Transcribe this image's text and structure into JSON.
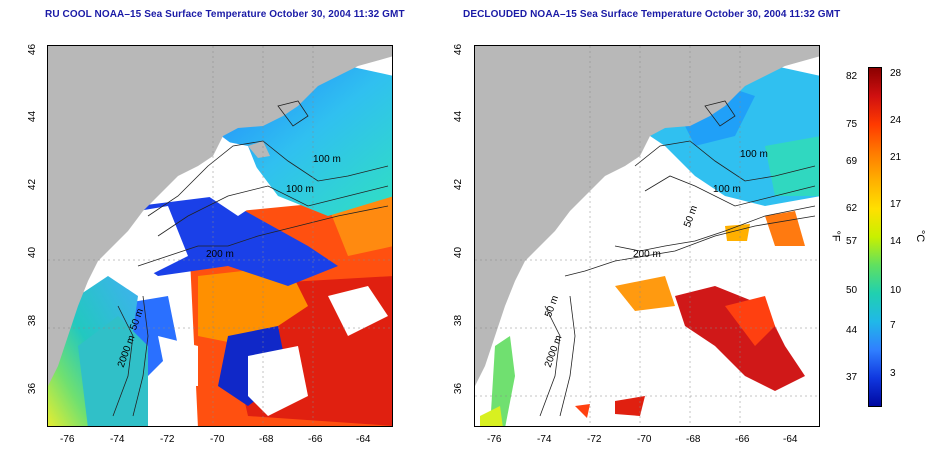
{
  "panels": [
    {
      "title": "RU COOL NOAA–15 Sea Surface Temperature October 30, 2004 11:32 GMT",
      "x_ticks": [
        "-76",
        "-74",
        "-72",
        "-70",
        "-68",
        "-66",
        "-64"
      ],
      "y_ticks": [
        "46",
        "44",
        "42",
        "40",
        "38",
        "36"
      ],
      "contour_labels": [
        "100 m",
        "100 m",
        "200 m",
        "50 m",
        "2000 m"
      ]
    },
    {
      "title": "DECLOUDED NOAA–15 Sea Surface Temperature October 30, 2004 11:32 GMT",
      "x_ticks": [
        "-76",
        "-74",
        "-72",
        "-70",
        "-68",
        "-66",
        "-64"
      ],
      "y_ticks": [
        "46",
        "44",
        "42",
        "40",
        "38",
        "36"
      ],
      "contour_labels": [
        "100 m",
        "100 m",
        "200 m",
        "50 m",
        "50 m",
        "2000 m"
      ]
    }
  ],
  "colorbar": {
    "fahrenheit_ticks": [
      "82",
      "75",
      "69",
      "62",
      "57",
      "50",
      "44",
      "37"
    ],
    "celsius_ticks": [
      "28",
      "24",
      "21",
      "17",
      "14",
      "10",
      "7",
      "3"
    ],
    "fahrenheit_unit": "°F",
    "celsius_unit": "°C",
    "colors": [
      "#8b0000",
      "#d01010",
      "#ff3a00",
      "#ff7a00",
      "#ffb000",
      "#ffe000",
      "#c8f000",
      "#60e060",
      "#20d0b0",
      "#20b8e8",
      "#3080ff",
      "#1038e0",
      "#0008a0"
    ]
  },
  "colors": {
    "land": "#b8b8b8",
    "cloud": "#ffffff",
    "title": "#1a1aa6"
  }
}
